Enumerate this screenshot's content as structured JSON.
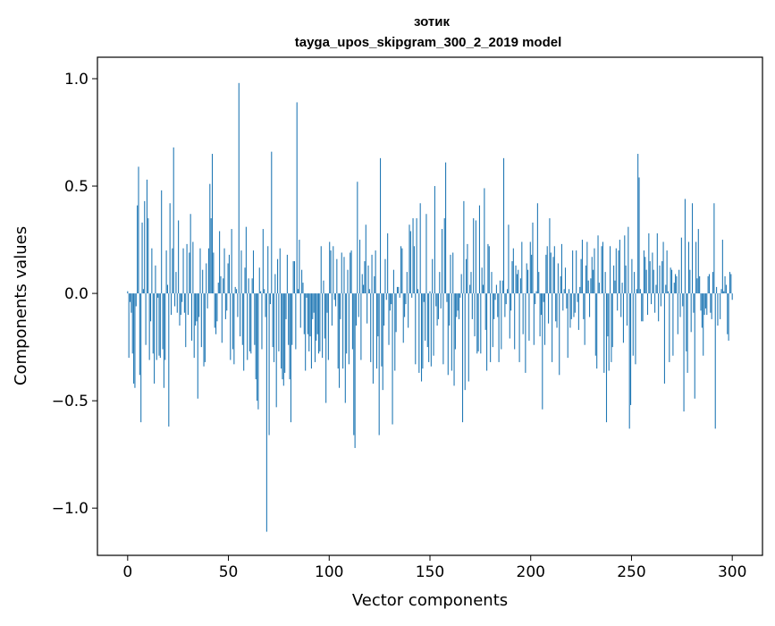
{
  "chart_data": {
    "type": "bar",
    "title": "зотик",
    "subtitle": "tayga_upos_skipgram_300_2_2019 model",
    "xlabel": "Vector components",
    "ylabel": "Components values",
    "xlim": [
      -15,
      315
    ],
    "ylim": [
      -1.22,
      1.1
    ],
    "xticks": [
      {
        "value": 0,
        "label": "0"
      },
      {
        "value": 50,
        "label": "50"
      },
      {
        "value": 100,
        "label": "100"
      },
      {
        "value": 150,
        "label": "150"
      },
      {
        "value": 200,
        "label": "200"
      },
      {
        "value": 250,
        "label": "250"
      },
      {
        "value": 300,
        "label": "300"
      }
    ],
    "yticks": [
      {
        "value": -1.0,
        "label": "−1.0"
      },
      {
        "value": -0.5,
        "label": "−0.5"
      },
      {
        "value": 0.0,
        "label": "0.0"
      },
      {
        "value": 0.5,
        "label": "0.5"
      },
      {
        "value": 1.0,
        "label": "1.0"
      }
    ],
    "bar_color": "#1f77b4",
    "grid": false,
    "values": [
      0.01,
      -0.3,
      -0.04,
      -0.09,
      -0.28,
      -0.42,
      -0.44,
      -0.06,
      0.41,
      0.59,
      -0.38,
      -0.6,
      0.33,
      0.02,
      0.43,
      -0.24,
      0.53,
      0.35,
      -0.31,
      -0.13,
      0.21,
      -0.28,
      -0.42,
      0.13,
      -0.31,
      -0.02,
      -0.29,
      -0.3,
      0.48,
      -0.26,
      -0.44,
      -0.31,
      0.2,
      0.04,
      -0.62,
      0.42,
      -0.1,
      0.21,
      0.68,
      -0.06,
      0.1,
      -0.09,
      0.34,
      -0.15,
      -0.1,
      -0.04,
      0.21,
      -0.09,
      -0.25,
      0.23,
      -0.1,
      0.19,
      0.37,
      -0.22,
      0.24,
      -0.3,
      -0.15,
      -0.13,
      -0.49,
      -0.11,
      0.21,
      -0.25,
      0.11,
      -0.34,
      -0.32,
      0.14,
      -0.07,
      0.21,
      0.51,
      0.35,
      0.65,
      0.19,
      -0.16,
      -0.19,
      -0.13,
      0.05,
      0.29,
      0.08,
      -0.23,
      0.07,
      0.21,
      -0.12,
      -0.08,
      0.14,
      0.18,
      -0.31,
      0.3,
      -0.26,
      -0.33,
      0.03,
      0.02,
      -0.11,
      0.98,
      -0.2,
      0.2,
      -0.24,
      -0.36,
      0.12,
      0.31,
      -0.31,
      0.07,
      -0.27,
      -0.28,
      0.07,
      0.2,
      -0.24,
      -0.4,
      -0.5,
      -0.54,
      0.12,
      0.01,
      -0.26,
      0.3,
      0.02,
      -0.11,
      -1.11,
      0.22,
      -0.66,
      -0.05,
      0.66,
      -0.25,
      -0.32,
      0.09,
      -0.53,
      0.16,
      -0.27,
      0.21,
      -0.35,
      -0.4,
      -0.43,
      -0.37,
      -0.12,
      0.18,
      -0.24,
      -0.4,
      -0.6,
      -0.24,
      0.15,
      0.15,
      -0.26,
      0.89,
      0.02,
      0.25,
      -0.16,
      0.11,
      0.05,
      -0.19,
      -0.36,
      -0.02,
      -0.19,
      -0.27,
      -0.2,
      -0.35,
      -0.12,
      -0.09,
      -0.32,
      -0.22,
      -0.19,
      -0.28,
      -0.27,
      0.22,
      -0.3,
      0.06,
      -0.21,
      -0.51,
      -0.09,
      -0.31,
      0.24,
      0.2,
      -0.15,
      0.22,
      -0.03,
      -0.06,
      0.16,
      -0.35,
      -0.44,
      -0.12,
      0.19,
      -0.35,
      0.17,
      -0.51,
      -0.28,
      0.11,
      -0.33,
      0.19,
      0.2,
      -0.26,
      -0.66,
      -0.72,
      -0.15,
      0.52,
      -0.11,
      0.25,
      -0.31,
      0.09,
      0.04,
      0.15,
      0.32,
      -0.14,
      0.13,
      0.02,
      -0.32,
      0.18,
      -0.42,
      0.08,
      0.2,
      -0.35,
      -0.2,
      -0.66,
      0.63,
      -0.34,
      -0.45,
      -0.15,
      0.16,
      -0.03,
      0.28,
      -0.24,
      -0.08,
      -0.05,
      -0.61,
      0.11,
      -0.36,
      -0.18,
      0.03,
      0.03,
      -0.02,
      0.22,
      0.21,
      -0.23,
      -0.11,
      -0.05,
      0.1,
      -0.16,
      0.32,
      0.29,
      -0.02,
      0.35,
      0.22,
      -0.33,
      0.35,
      0.02,
      -0.37,
      0.42,
      -0.41,
      -0.35,
      -0.04,
      -0.22,
      0.37,
      -0.25,
      -0.32,
      0.01,
      -0.34,
      0.16,
      -0.29,
      0.5,
      -0.06,
      -0.15,
      -0.12,
      0.1,
      -0.07,
      0.3,
      -0.33,
      0.35,
      0.61,
      -0.04,
      -0.38,
      -0.15,
      0.18,
      -0.36,
      0.19,
      -0.43,
      -0.26,
      -0.11,
      -0.08,
      -0.12,
      -0.02,
      0.09,
      -0.6,
      0.43,
      -0.45,
      0.16,
      0.23,
      -0.41,
      0.04,
      0.1,
      -0.12,
      0.35,
      -0.2,
      0.34,
      -0.28,
      -0.27,
      0.41,
      -0.28,
      0.12,
      0.04,
      0.49,
      -0.17,
      -0.36,
      0.23,
      0.22,
      -0.32,
      0.1,
      -0.25,
      -0.12,
      -0.03,
      0.04,
      -0.11,
      -0.32,
      0.06,
      -0.26,
      0.06,
      0.63,
      -0.11,
      -0.05,
      0.02,
      0.32,
      -0.21,
      -0.08,
      0.15,
      0.21,
      -0.26,
      0.13,
      0.09,
      0.11,
      -0.32,
      0.07,
      0.24,
      -0.19,
      0.0,
      -0.37,
      0.14,
      0.11,
      -0.22,
      0.24,
      0.18,
      0.33,
      -0.24,
      -0.05,
      0.01,
      0.42,
      0.1,
      -0.2,
      -0.1,
      -0.54,
      -0.04,
      -0.24,
      0.18,
      0.22,
      -0.14,
      0.35,
      0.19,
      -0.32,
      0.17,
      0.22,
      -0.13,
      -0.16,
      0.14,
      -0.38,
      0.08,
      0.23,
      -0.08,
      0.02,
      0.12,
      -0.07,
      -0.3,
      0.02,
      -0.16,
      -0.12,
      0.2,
      -0.11,
      -0.09,
      0.2,
      -0.04,
      -0.17,
      0.03,
      0.16,
      0.25,
      -0.12,
      -0.24,
      0.13,
      0.24,
      0.06,
      -0.11,
      0.07,
      0.17,
      0.11,
      0.21,
      -0.29,
      -0.35,
      0.27,
      0.05,
      0.0,
      0.22,
      0.24,
      -0.37,
      0.1,
      -0.6,
      -0.2,
      -0.36,
      0.22,
      -0.32,
      -0.25,
      0.13,
      0.06,
      0.21,
      -0.08,
      0.2,
      0.25,
      -0.11,
      0.05,
      -0.23,
      0.27,
      0.13,
      -0.15,
      0.31,
      -0.63,
      -0.52,
      0.16,
      -0.29,
      0.1,
      -0.33,
      0.02,
      0.65,
      0.54,
      0.02,
      -0.13,
      -0.13,
      0.2,
      0.17,
      0.11,
      -0.1,
      0.28,
      0.15,
      -0.05,
      0.19,
      0.11,
      -0.09,
      0.04,
      0.28,
      -0.13,
      0.13,
      -0.06,
      0.15,
      0.24,
      -0.42,
      0.04,
      0.2,
      0.01,
      -0.32,
      0.12,
      0.11,
      -0.29,
      0.05,
      0.09,
      0.08,
      -0.19,
      0.11,
      -0.11,
      0.26,
      -0.06,
      -0.55,
      0.44,
      -0.27,
      -0.37,
      0.24,
      0.11,
      -0.18,
      0.42,
      -0.09,
      -0.49,
      0.24,
      0.07,
      0.3,
      0.08,
      -0.08,
      -0.16,
      -0.29,
      -0.1,
      -0.07,
      -0.1,
      0.08,
      0.09,
      -0.09,
      -0.12,
      0.1,
      0.42,
      -0.63,
      0.03,
      -0.15,
      0.0,
      -0.12,
      0.02,
      0.25,
      0.01,
      0.08,
      0.04,
      -0.19,
      -0.22,
      0.1,
      0.09,
      -0.03
    ]
  }
}
